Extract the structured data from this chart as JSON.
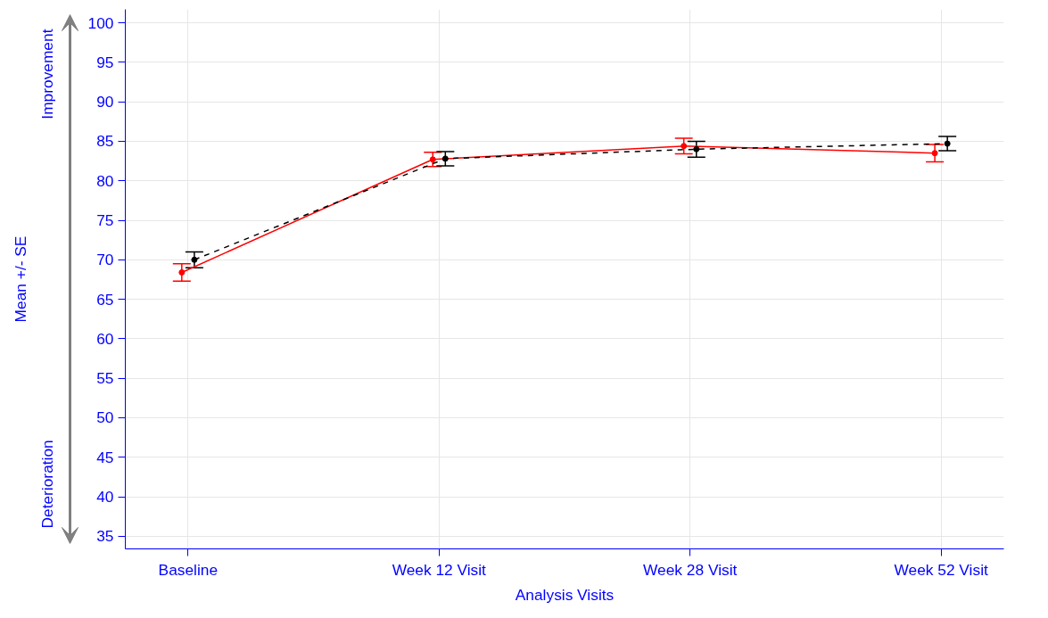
{
  "chart_data": {
    "type": "line",
    "xlabel": "Analysis Visits",
    "ylabel": "Mean +/- SE",
    "annotations": [
      "Improvement",
      "Deterioration"
    ],
    "categories": [
      "Baseline",
      "Week 12 Visit",
      "Week 28 Visit",
      "Week 52 Visit"
    ],
    "ylim": [
      33.4,
      101.7
    ],
    "yticks": [
      35,
      40,
      45,
      50,
      55,
      60,
      65,
      70,
      75,
      80,
      85,
      90,
      95,
      100
    ],
    "grid": true,
    "marker": "circle",
    "series": [
      {
        "color": "#ff0000",
        "line_style": "solid",
        "values": [
          68.4,
          82.7,
          84.4,
          83.5
        ],
        "errors": [
          1.1,
          0.9,
          1.0,
          1.1
        ]
      },
      {
        "color": "#000000",
        "line_style": "dashed",
        "values": [
          70.0,
          82.8,
          84.0,
          84.7
        ],
        "errors": [
          1.0,
          0.9,
          1.0,
          0.9
        ]
      }
    ]
  }
}
